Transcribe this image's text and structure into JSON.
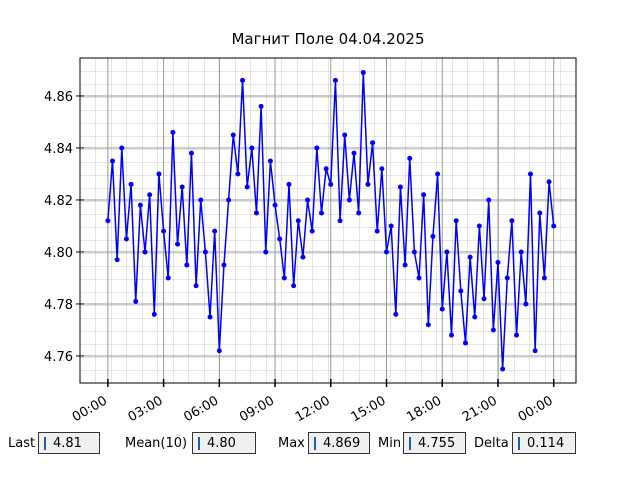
{
  "chart_data": {
    "type": "line",
    "title": "Магнит Поле 04.04.2025",
    "x": [
      0,
      0.25,
      0.5,
      0.75,
      1,
      1.25,
      1.5,
      1.75,
      2,
      2.25,
      2.5,
      2.75,
      3,
      3.25,
      3.5,
      3.75,
      4,
      4.25,
      4.5,
      4.75,
      5,
      5.25,
      5.5,
      5.75,
      6,
      6.25,
      6.5,
      6.75,
      7,
      7.25,
      7.5,
      7.75,
      8,
      8.25,
      8.5,
      8.75,
      9,
      9.25,
      9.5,
      9.75,
      10,
      10.25,
      10.5,
      10.75,
      11,
      11.25,
      11.5,
      11.75,
      12,
      12.25,
      12.5,
      12.75,
      13,
      13.25,
      13.5,
      13.75,
      14,
      14.25,
      14.5,
      14.75,
      15,
      15.25,
      15.5,
      15.75,
      16,
      16.25,
      16.5,
      16.75,
      17,
      17.25,
      17.5,
      17.75,
      18,
      18.25,
      18.5,
      18.75,
      19,
      19.25,
      19.5,
      19.75,
      20,
      20.25,
      20.5,
      20.75,
      21,
      21.25,
      21.5,
      21.75,
      22,
      22.25,
      22.5,
      22.75,
      23,
      23.25,
      23.5,
      23.75,
      24
    ],
    "series": [
      {
        "color": "#0000ff",
        "values": [
          4.812,
          4.835,
          4.797,
          4.84,
          4.805,
          4.826,
          4.781,
          4.818,
          4.8,
          4.822,
          4.776,
          4.83,
          4.808,
          4.79,
          4.846,
          4.803,
          4.825,
          4.795,
          4.838,
          4.787,
          4.82,
          4.8,
          4.775,
          4.808,
          4.762,
          4.795,
          4.82,
          4.845,
          4.83,
          4.866,
          4.825,
          4.84,
          4.815,
          4.856,
          4.8,
          4.835,
          4.818,
          4.805,
          4.79,
          4.826,
          4.787,
          4.812,
          4.798,
          4.82,
          4.808,
          4.84,
          4.815,
          4.832,
          4.826,
          4.866,
          4.812,
          4.845,
          4.82,
          4.838,
          4.815,
          4.869,
          4.826,
          4.842,
          4.808,
          4.832,
          4.8,
          4.81,
          4.776,
          4.825,
          4.795,
          4.836,
          4.8,
          4.79,
          4.822,
          4.772,
          4.806,
          4.83,
          4.778,
          4.8,
          4.768,
          4.812,
          4.785,
          4.765,
          4.798,
          4.775,
          4.81,
          4.782,
          4.82,
          4.77,
          4.796,
          4.755,
          4.79,
          4.812,
          4.768,
          4.8,
          4.78,
          4.83,
          4.762,
          4.815,
          4.79,
          4.827,
          4.81
        ]
      }
    ],
    "xlim": [
      -1.5,
      25.2
    ],
    "xticks": [
      {
        "value": 0,
        "label": "00:00"
      },
      {
        "value": 3,
        "label": "03:00"
      },
      {
        "value": 6,
        "label": "06:00"
      },
      {
        "value": 9,
        "label": "09:00"
      },
      {
        "value": 12,
        "label": "12:00"
      },
      {
        "value": 15,
        "label": "15:00"
      },
      {
        "value": 18,
        "label": "18:00"
      },
      {
        "value": 21,
        "label": "21:00"
      },
      {
        "value": 24,
        "label": "00:00"
      }
    ],
    "ylim": [
      4.7496,
      4.8746
    ],
    "yticks": [
      {
        "value": 4.76,
        "label": "4.76"
      },
      {
        "value": 4.78,
        "label": "4.78"
      },
      {
        "value": 4.8,
        "label": "4.80"
      },
      {
        "value": 4.82,
        "label": "4.82"
      },
      {
        "value": 4.84,
        "label": "4.84"
      },
      {
        "value": 4.86,
        "label": "4.86"
      }
    ],
    "grid": true
  },
  "status_bar": [
    {
      "label": "Last",
      "value": "4.81"
    },
    {
      "label": "Mean(10)",
      "value": "4.80"
    },
    {
      "label": "Max",
      "value": "4.869"
    },
    {
      "label": "Min",
      "value": "4.755"
    },
    {
      "label": "Delta",
      "value": "0.114"
    }
  ]
}
